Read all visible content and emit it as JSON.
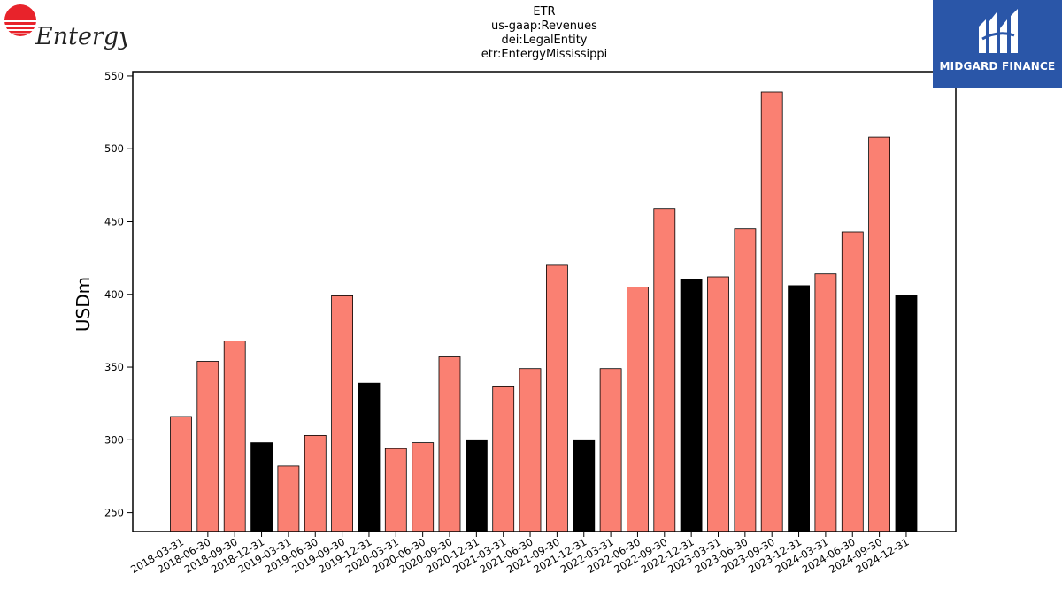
{
  "title_lines": [
    "ETR",
    "us-gaap:Revenues",
    "dei:LegalEntity",
    "etr:EntergyMississippi"
  ],
  "brand_left": {
    "name": "Entergy",
    "icon": "entergy-sun-logo-icon",
    "color": "#e8232b"
  },
  "brand_right": {
    "name": "MIDGARD FINANCE",
    "icon": "midgard-logo-icon",
    "color": "#2a56a8"
  },
  "chart_data": {
    "type": "bar",
    "ylabel": "USDm",
    "xlabel": "",
    "ylim": [
      237,
      553
    ],
    "yticks": [
      250,
      300,
      350,
      400,
      450,
      500,
      550
    ],
    "grid": false,
    "colors": {
      "quarter": "#fa8072",
      "year_end": "#000000",
      "edge": "#000000"
    },
    "categories": [
      "2018-03-31",
      "2018-06-30",
      "2018-09-30",
      "2018-12-31",
      "2019-03-31",
      "2019-06-30",
      "2019-09-30",
      "2019-12-31",
      "2020-03-31",
      "2020-06-30",
      "2020-09-30",
      "2020-12-31",
      "2021-03-31",
      "2021-06-30",
      "2021-09-30",
      "2021-12-31",
      "2022-03-31",
      "2022-06-30",
      "2022-09-30",
      "2022-12-31",
      "2023-03-31",
      "2023-06-30",
      "2023-09-30",
      "2023-12-31",
      "2024-03-31",
      "2024-06-30",
      "2024-09-30",
      "2024-12-31"
    ],
    "values": [
      316,
      354,
      368,
      298,
      282,
      303,
      399,
      339,
      294,
      298,
      357,
      300,
      337,
      349,
      420,
      300,
      349,
      405,
      459,
      410,
      412,
      445,
      539,
      406,
      414,
      443,
      508,
      399
    ]
  }
}
